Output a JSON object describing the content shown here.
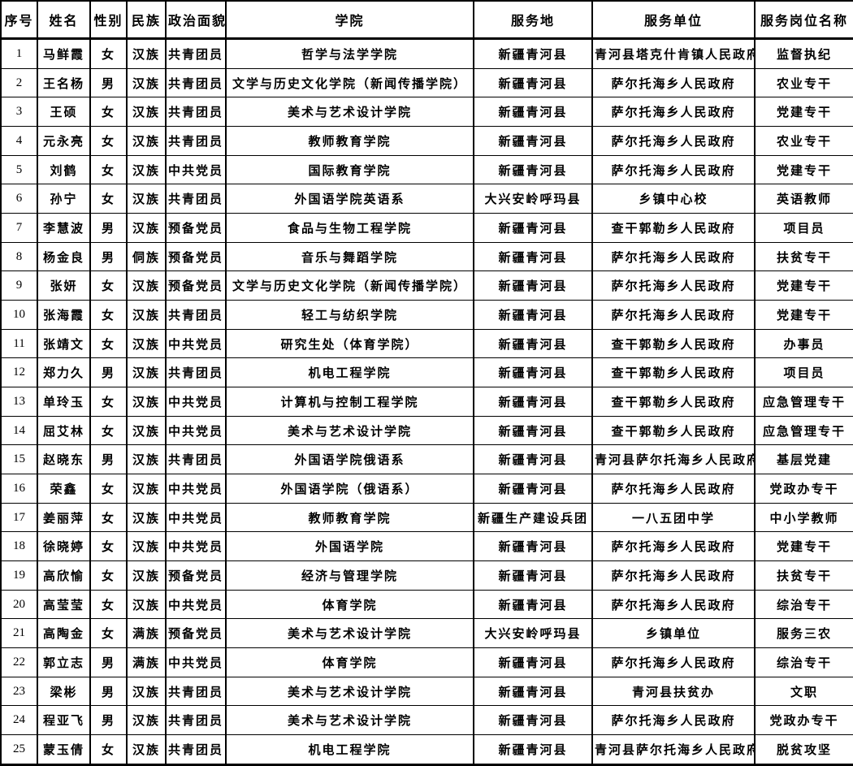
{
  "colors": {
    "background": "#ffffff",
    "text": "#000000",
    "border": "#000000"
  },
  "table": {
    "columns": [
      "序号",
      "姓名",
      "性别",
      "民族",
      "政治面貌",
      "学院",
      "服务地",
      "服务单位",
      "服务岗位名称"
    ],
    "rows": [
      [
        "1",
        "马鲜霞",
        "女",
        "汉族",
        "共青团员",
        "哲学与法学学院",
        "新疆青河县",
        "青河县塔克什肯镇人民政府",
        "监督执纪"
      ],
      [
        "2",
        "王名杨",
        "男",
        "汉族",
        "共青团员",
        "文学与历史文化学院（新闻传播学院）",
        "新疆青河县",
        "萨尔托海乡人民政府",
        "农业专干"
      ],
      [
        "3",
        "王硕",
        "女",
        "汉族",
        "共青团员",
        "美术与艺术设计学院",
        "新疆青河县",
        "萨尔托海乡人民政府",
        "党建专干"
      ],
      [
        "4",
        "元永亮",
        "女",
        "汉族",
        "共青团员",
        "教师教育学院",
        "新疆青河县",
        "萨尔托海乡人民政府",
        "农业专干"
      ],
      [
        "5",
        "刘鹤",
        "女",
        "汉族",
        "中共党员",
        "国际教育学院",
        "新疆青河县",
        "萨尔托海乡人民政府",
        "党建专干"
      ],
      [
        "6",
        "孙宁",
        "女",
        "汉族",
        "共青团员",
        "外国语学院英语系",
        "大兴安岭呼玛县",
        "乡镇中心校",
        "英语教师"
      ],
      [
        "7",
        "李慧波",
        "男",
        "汉族",
        "预备党员",
        "食品与生物工程学院",
        "新疆青河县",
        "查干郭勒乡人民政府",
        "项目员"
      ],
      [
        "8",
        "杨金良",
        "男",
        "侗族",
        "预备党员",
        "音乐与舞蹈学院",
        "新疆青河县",
        "萨尔托海乡人民政府",
        "扶贫专干"
      ],
      [
        "9",
        "张妍",
        "女",
        "汉族",
        "预备党员",
        "文学与历史文化学院（新闻传播学院）",
        "新疆青河县",
        "萨尔托海乡人民政府",
        "党建专干"
      ],
      [
        "10",
        "张海霞",
        "女",
        "汉族",
        "共青团员",
        "轻工与纺织学院",
        "新疆青河县",
        "萨尔托海乡人民政府",
        "党建专干"
      ],
      [
        "11",
        "张靖文",
        "女",
        "汉族",
        "中共党员",
        "研究生处（体育学院）",
        "新疆青河县",
        "查干郭勒乡人民政府",
        "办事员"
      ],
      [
        "12",
        "郑力久",
        "男",
        "汉族",
        "共青团员",
        "机电工程学院",
        "新疆青河县",
        "查干郭勒乡人民政府",
        "项目员"
      ],
      [
        "13",
        "单玲玉",
        "女",
        "汉族",
        "中共党员",
        "计算机与控制工程学院",
        "新疆青河县",
        "查干郭勒乡人民政府",
        "应急管理专干"
      ],
      [
        "14",
        "屈艾林",
        "女",
        "汉族",
        "中共党员",
        "美术与艺术设计学院",
        "新疆青河县",
        "查干郭勒乡人民政府",
        "应急管理专干"
      ],
      [
        "15",
        "赵晓东",
        "男",
        "汉族",
        "共青团员",
        "外国语学院俄语系",
        "新疆青河县",
        "青河县萨尔托海乡人民政府",
        "基层党建"
      ],
      [
        "16",
        "荣鑫",
        "女",
        "汉族",
        "中共党员",
        "外国语学院（俄语系）",
        "新疆青河县",
        "萨尔托海乡人民政府",
        "党政办专干"
      ],
      [
        "17",
        "姜丽萍",
        "女",
        "汉族",
        "中共党员",
        "教师教育学院",
        "新疆生产建设兵团",
        "一八五团中学",
        "中小学教师"
      ],
      [
        "18",
        "徐晓婷",
        "女",
        "汉族",
        "中共党员",
        "外国语学院",
        "新疆青河县",
        "萨尔托海乡人民政府",
        "党建专干"
      ],
      [
        "19",
        "高欣愉",
        "女",
        "汉族",
        "预备党员",
        "经济与管理学院",
        "新疆青河县",
        "萨尔托海乡人民政府",
        "扶贫专干"
      ],
      [
        "20",
        "高莹莹",
        "女",
        "汉族",
        "中共党员",
        "体育学院",
        "新疆青河县",
        "萨尔托海乡人民政府",
        "综治专干"
      ],
      [
        "21",
        "高陶金",
        "女",
        "满族",
        "预备党员",
        "美术与艺术设计学院",
        "大兴安岭呼玛县",
        "乡镇单位",
        "服务三农"
      ],
      [
        "22",
        "郭立志",
        "男",
        "满族",
        "中共党员",
        "体育学院",
        "新疆青河县",
        "萨尔托海乡人民政府",
        "综治专干"
      ],
      [
        "23",
        "梁彬",
        "男",
        "汉族",
        "共青团员",
        "美术与艺术设计学院",
        "新疆青河县",
        "青河县扶贫办",
        "文职"
      ],
      [
        "24",
        "程亚飞",
        "男",
        "汉族",
        "共青团员",
        "美术与艺术设计学院",
        "新疆青河县",
        "萨尔托海乡人民政府",
        "党政办专干"
      ],
      [
        "25",
        "蒙玉倩",
        "女",
        "汉族",
        "共青团员",
        "机电工程学院",
        "新疆青河县",
        "青河县萨尔托海乡人民政府",
        "脱贫攻坚"
      ]
    ]
  }
}
